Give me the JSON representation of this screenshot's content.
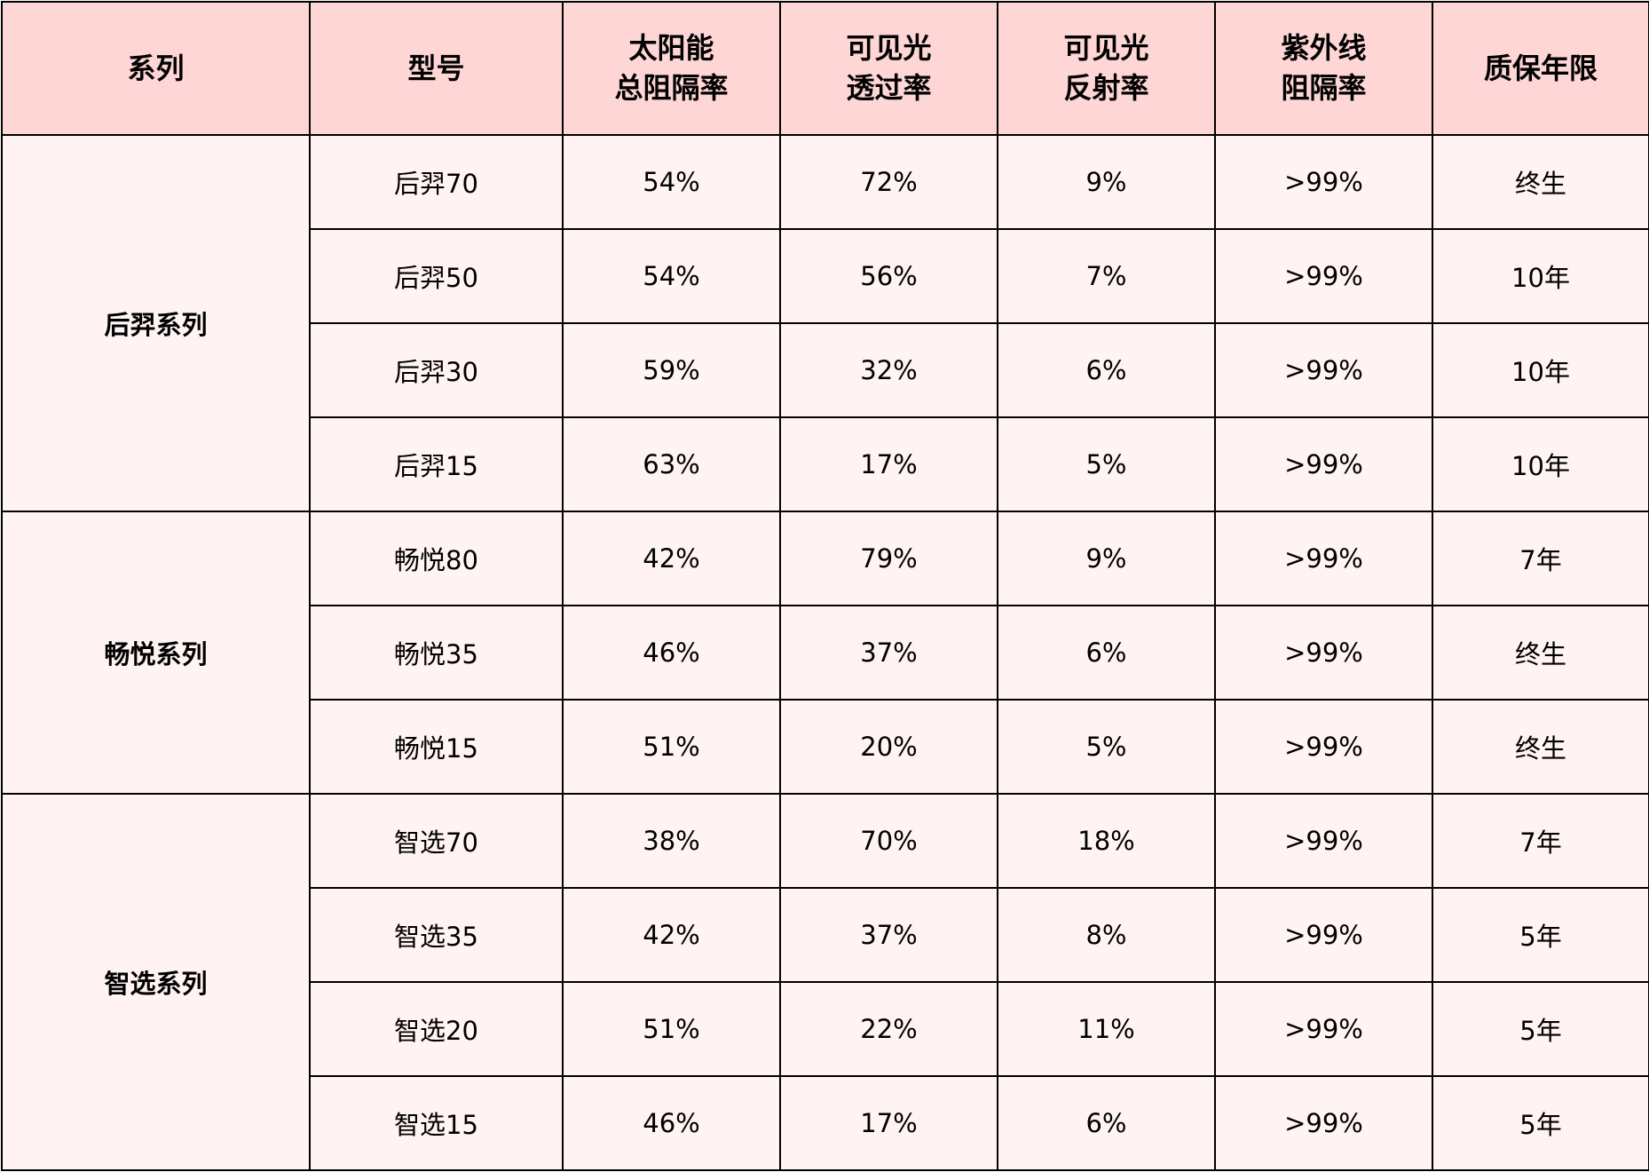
{
  "table": {
    "header": [
      "系列",
      "型号",
      "太阳能\n总阻隔率",
      "可见光\n透过率",
      "可见光\n反射率",
      "紫外线\n阻隔率",
      "质保年限"
    ],
    "groups": [
      {
        "name": "后羿系列",
        "rows": [
          [
            "后羿70",
            "54%",
            "72%",
            "9%",
            ">99%",
            "终生"
          ],
          [
            "后羿50",
            "54%",
            "56%",
            "7%",
            ">99%",
            "10年"
          ],
          [
            "后羿30",
            "59%",
            "32%",
            "6%",
            ">99%",
            "10年"
          ],
          [
            "后羿15",
            "63%",
            "17%",
            "5%",
            ">99%",
            "10年"
          ]
        ]
      },
      {
        "name": "畅悦系列",
        "rows": [
          [
            "畅悦80",
            "42%",
            "79%",
            "9%",
            ">99%",
            "7年"
          ],
          [
            "畅悦35",
            "46%",
            "37%",
            "6%",
            ">99%",
            "终生"
          ],
          [
            "畅悦15",
            "51%",
            "20%",
            "5%",
            ">99%",
            "终生"
          ]
        ]
      },
      {
        "name": "智选系列",
        "rows": [
          [
            "智选70",
            "38%",
            "70%",
            "18%",
            ">99%",
            "7年"
          ],
          [
            "智选35",
            "42%",
            "37%",
            "8%",
            ">99%",
            "5年"
          ],
          [
            "智选20",
            "51%",
            "22%",
            "11%",
            ">99%",
            "5年"
          ],
          [
            "智选15",
            "46%",
            "17%",
            "6%",
            ">99%",
            "5年"
          ]
        ]
      }
    ]
  }
}
